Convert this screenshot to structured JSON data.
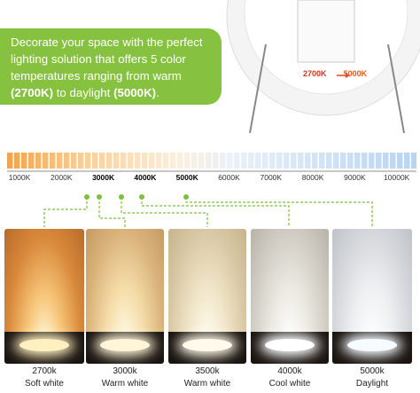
{
  "callout": {
    "parts": [
      "Decorate your space with the perfect lighting solution that offers 5 color temperatures ranging from warm ",
      "(2700K)",
      " to daylight ",
      "(5000K)",
      "."
    ]
  },
  "fixture": {
    "range_start": "2700K",
    "range_end": "5000K"
  },
  "scale": {
    "labels": [
      "1000K",
      "2000K",
      "3000K",
      "4000K",
      "5000K",
      "6000K",
      "7000K",
      "8000K",
      "9000K",
      "10000K"
    ]
  },
  "panels": [
    {
      "kelvin": "2700k",
      "name": "Soft white"
    },
    {
      "kelvin": "3000k",
      "name": "Warm white"
    },
    {
      "kelvin": "3500k",
      "name": "Warm white"
    },
    {
      "kelvin": "4000k",
      "name": "Cool white"
    },
    {
      "kelvin": "5000k",
      "name": "Daylight"
    }
  ]
}
